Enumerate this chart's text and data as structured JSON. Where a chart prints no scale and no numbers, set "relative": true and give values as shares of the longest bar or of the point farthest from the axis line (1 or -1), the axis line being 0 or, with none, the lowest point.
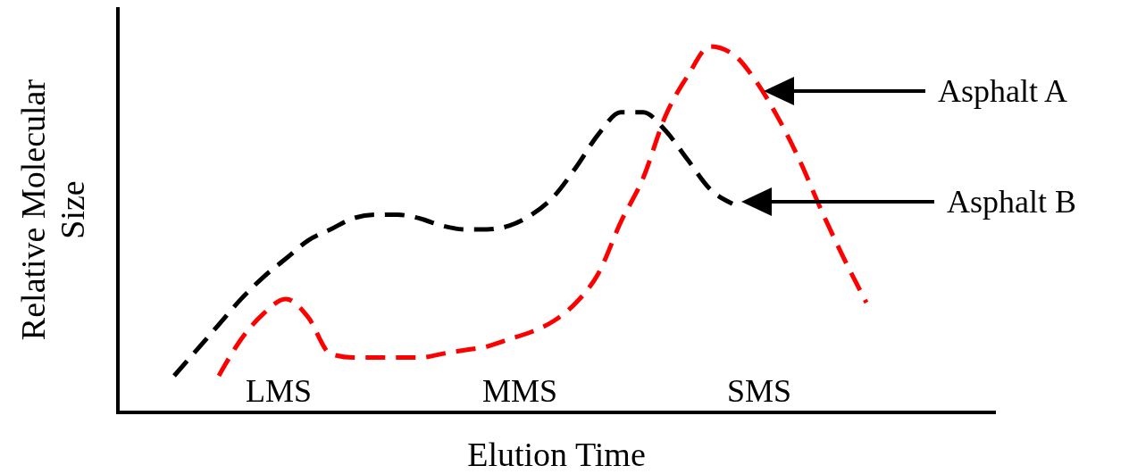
{
  "chart_data": {
    "type": "line",
    "relative": true,
    "xlabel": "Elution Time",
    "ylabel": "Relative Molecular Size",
    "line_style": "dashed",
    "categories": [
      null,
      null,
      null,
      null,
      null,
      null,
      null,
      null,
      null,
      null,
      null,
      null,
      null,
      null,
      null,
      null,
      null,
      null,
      null,
      null,
      null,
      null,
      null,
      null,
      null,
      null,
      null,
      null,
      null,
      null,
      null,
      null
    ],
    "series": [
      {
        "color": "#000000",
        "values": [
          0.1,
          0.17,
          0.24,
          0.31,
          0.37,
          0.42,
          0.47,
          0.5,
          0.53,
          0.54,
          0.54,
          0.53,
          0.51,
          0.5,
          0.5,
          0.51,
          0.54,
          0.59,
          0.67,
          0.76,
          0.82,
          0.82,
          0.77,
          0.69,
          0.61,
          0.57,
          null,
          null,
          null,
          null,
          null,
          null
        ]
      },
      {
        "color": "#ff0000",
        "values": [
          null,
          null,
          0.1,
          0.2,
          0.27,
          0.31,
          0.26,
          0.16,
          0.15,
          0.15,
          0.15,
          0.15,
          0.16,
          0.17,
          0.18,
          0.2,
          0.22,
          0.25,
          0.3,
          0.38,
          0.52,
          0.64,
          0.81,
          0.92,
          1,
          0.98,
          0.91,
          0.81,
          0.69,
          0.55,
          0.42,
          0.3
        ]
      }
    ],
    "annotations": [
      "LMS",
      "MMS",
      "SMS",
      "Asphalt A",
      "Asphalt B"
    ]
  }
}
